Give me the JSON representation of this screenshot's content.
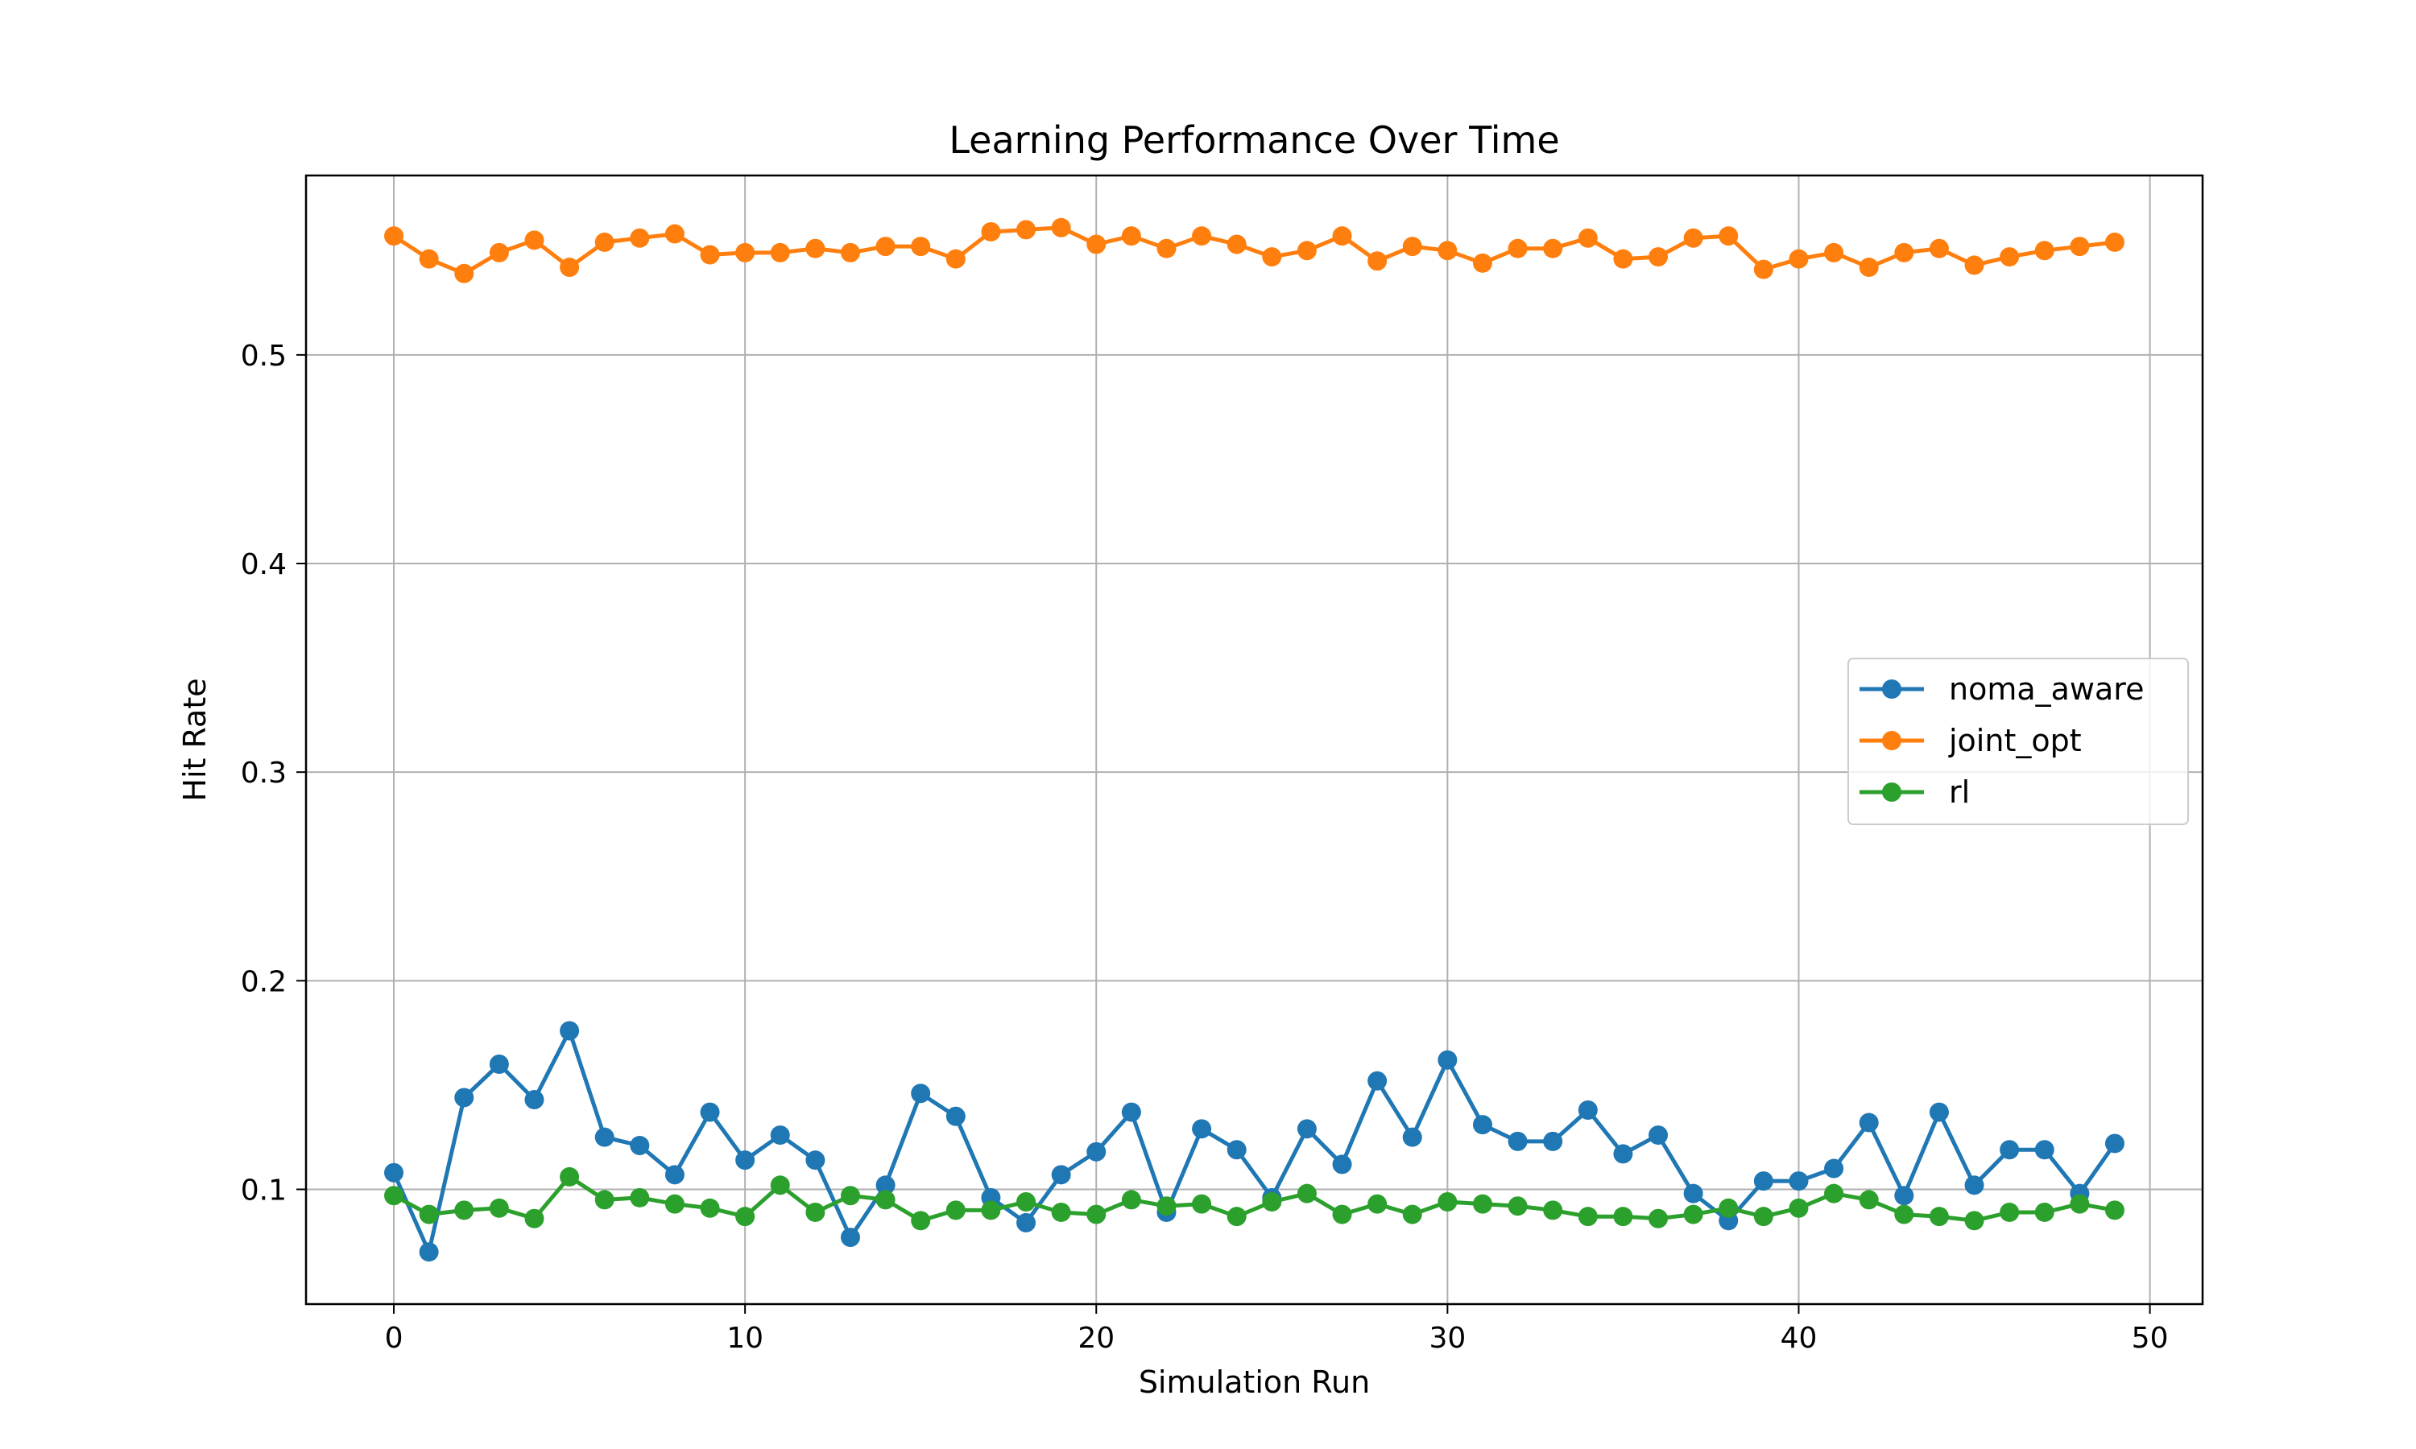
{
  "chart_data": {
    "type": "line",
    "title": "Learning Performance Over Time",
    "xlabel": "Simulation Run",
    "ylabel": "Hit Rate",
    "xlim": [
      -2.5,
      51.5
    ],
    "ylim": [
      0.045,
      0.586
    ],
    "xticks": [
      0,
      10,
      20,
      30,
      40,
      50
    ],
    "yticks": [
      0.1,
      0.2,
      0.3,
      0.4,
      0.5
    ],
    "grid": true,
    "legend_position": "center-right",
    "x": [
      0,
      1,
      2,
      3,
      4,
      5,
      6,
      7,
      8,
      9,
      10,
      11,
      12,
      13,
      14,
      15,
      16,
      17,
      18,
      19,
      20,
      21,
      22,
      23,
      24,
      25,
      26,
      27,
      28,
      29,
      30,
      31,
      32,
      33,
      34,
      35,
      36,
      37,
      38,
      39,
      40,
      41,
      42,
      43,
      44,
      45,
      46,
      47,
      48,
      49
    ],
    "series": [
      {
        "name": "noma_aware",
        "color": "#1f77b4",
        "values": [
          0.108,
          0.07,
          0.144,
          0.16,
          0.143,
          0.176,
          0.125,
          0.121,
          0.107,
          0.137,
          0.114,
          0.126,
          0.114,
          0.077,
          0.102,
          0.146,
          0.135,
          0.096,
          0.084,
          0.107,
          0.118,
          0.137,
          0.089,
          0.129,
          0.119,
          0.096,
          0.129,
          0.112,
          0.152,
          0.125,
          0.162,
          0.131,
          0.123,
          0.123,
          0.138,
          0.117,
          0.126,
          0.098,
          0.085,
          0.104,
          0.104,
          0.11,
          0.132,
          0.097,
          0.137,
          0.102,
          0.119,
          0.119,
          0.098,
          0.122
        ]
      },
      {
        "name": "joint_opt",
        "color": "#ff7f0e",
        "values": [
          0.557,
          0.546,
          0.539,
          0.549,
          0.555,
          0.542,
          0.554,
          0.556,
          0.558,
          0.548,
          0.549,
          0.549,
          0.551,
          0.549,
          0.552,
          0.552,
          0.546,
          0.559,
          0.56,
          0.561,
          0.553,
          0.557,
          0.551,
          0.557,
          0.553,
          0.547,
          0.55,
          0.557,
          0.545,
          0.552,
          0.55,
          0.544,
          0.551,
          0.551,
          0.556,
          0.546,
          0.547,
          0.556,
          0.557,
          0.541,
          0.546,
          0.549,
          0.542,
          0.549,
          0.551,
          0.543,
          0.547,
          0.55,
          0.552,
          0.554
        ]
      },
      {
        "name": "rl",
        "color": "#2ca02c",
        "values": [
          0.097,
          0.088,
          0.09,
          0.091,
          0.086,
          0.106,
          0.095,
          0.096,
          0.093,
          0.091,
          0.087,
          0.102,
          0.089,
          0.097,
          0.095,
          0.085,
          0.09,
          0.09,
          0.094,
          0.089,
          0.088,
          0.095,
          0.092,
          0.093,
          0.087,
          0.094,
          0.098,
          0.088,
          0.093,
          0.088,
          0.094,
          0.093,
          0.092,
          0.09,
          0.087,
          0.087,
          0.086,
          0.088,
          0.091,
          0.087,
          0.091,
          0.098,
          0.095,
          0.088,
          0.087,
          0.085,
          0.089,
          0.089,
          0.093,
          0.09
        ]
      }
    ]
  }
}
